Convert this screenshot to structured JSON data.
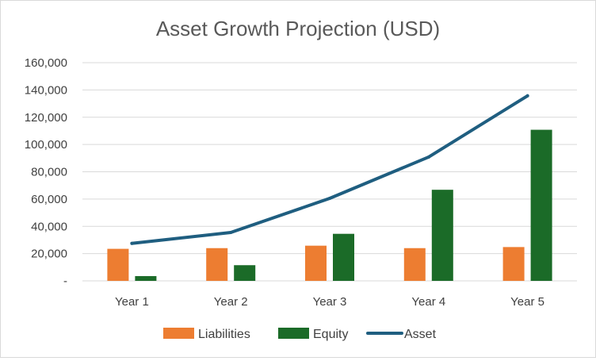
{
  "chart_data": {
    "type": "bar",
    "title": "Asset Growth Projection (USD)",
    "categories": [
      "Year 1",
      "Year 2",
      "Year 3",
      "Year 4",
      "Year 5"
    ],
    "series": [
      {
        "name": "Liabilities",
        "kind": "bar",
        "color": "#ED7D31",
        "values": [
          23500,
          24000,
          25800,
          24000,
          24800
        ]
      },
      {
        "name": "Equity",
        "kind": "bar",
        "color": "#1B6B28",
        "values": [
          3500,
          11500,
          34500,
          66800,
          110800
        ]
      },
      {
        "name": "Asset",
        "kind": "line",
        "color": "#1F5E80",
        "values": [
          27500,
          35500,
          60500,
          90800,
          135700
        ]
      }
    ],
    "y_ticks": [
      0,
      20000,
      40000,
      60000,
      80000,
      100000,
      120000,
      140000,
      160000
    ],
    "y_tick_labels": [
      "-",
      "20,000",
      "40,000",
      "60,000",
      "80,000",
      "100,000",
      "120,000",
      "140,000",
      "160,000"
    ],
    "ylim": [
      0,
      160000
    ],
    "grid": true,
    "legend": "bottom",
    "xlabel": "",
    "ylabel": ""
  }
}
